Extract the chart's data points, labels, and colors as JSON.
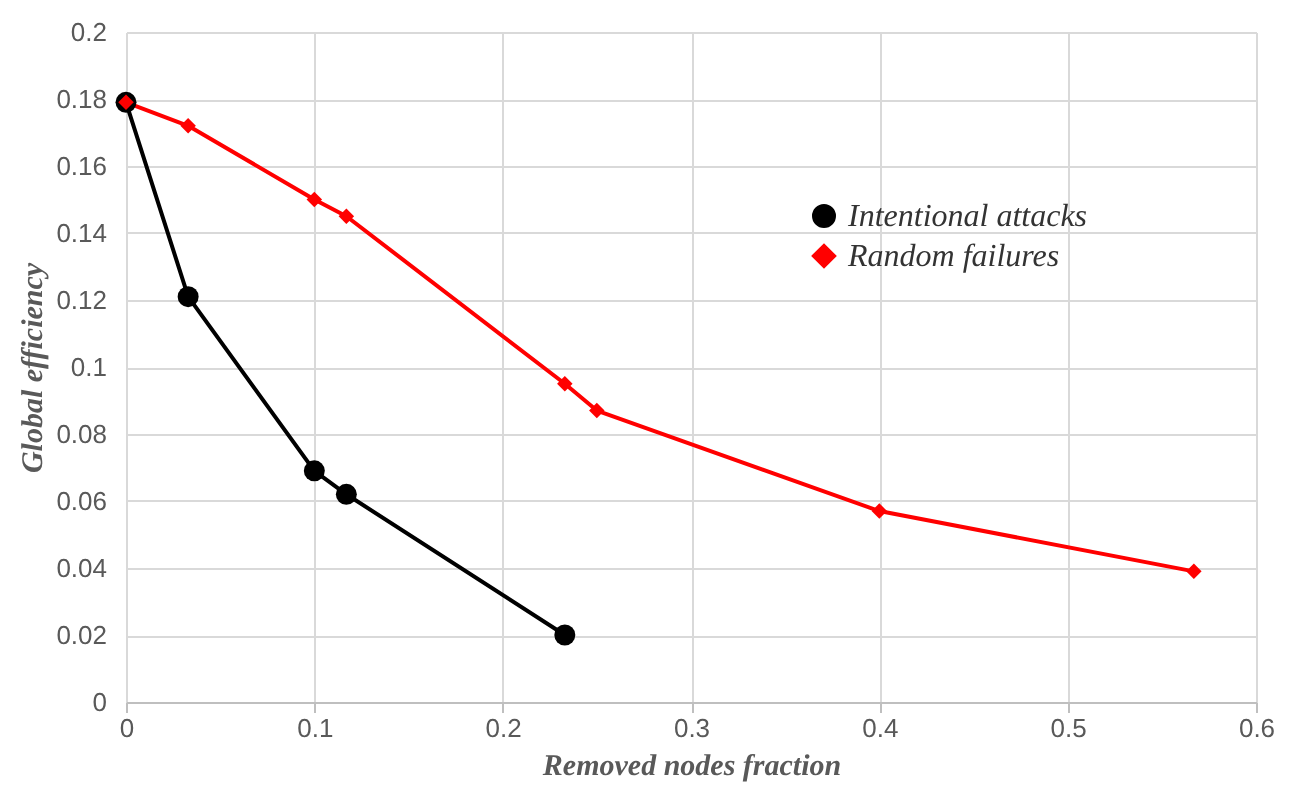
{
  "chart_data": {
    "type": "line",
    "xlabel": "Removed nodes fraction",
    "ylabel": "Global efficiency",
    "xlim": [
      0,
      0.6
    ],
    "xticks": [
      0,
      0.1,
      0.2,
      0.3,
      0.4,
      0.5,
      0.6
    ],
    "ylim": [
      0,
      0.2
    ],
    "yticks": [
      0,
      0.02,
      0.04,
      0.06,
      0.08,
      0.1,
      0.12,
      0.14,
      0.16,
      0.18,
      0.2
    ],
    "grid": true,
    "legend": "top right",
    "line_style": "solid",
    "series": [
      {
        "name": "Intentional attacks",
        "color": "#000000",
        "marker": "circle",
        "x": [
          0,
          0.033,
          0.1,
          0.117,
          0.233
        ],
        "values": [
          0.179,
          0.121,
          0.069,
          0.062,
          0.02
        ]
      },
      {
        "name": "Random failures",
        "color": "#ff0000",
        "marker": "diamond",
        "x": [
          0,
          0.033,
          0.1,
          0.117,
          0.233,
          0.25,
          0.4,
          0.567
        ],
        "values": [
          0.179,
          0.172,
          0.15,
          0.145,
          0.095,
          0.087,
          0.057,
          0.039
        ]
      }
    ]
  }
}
